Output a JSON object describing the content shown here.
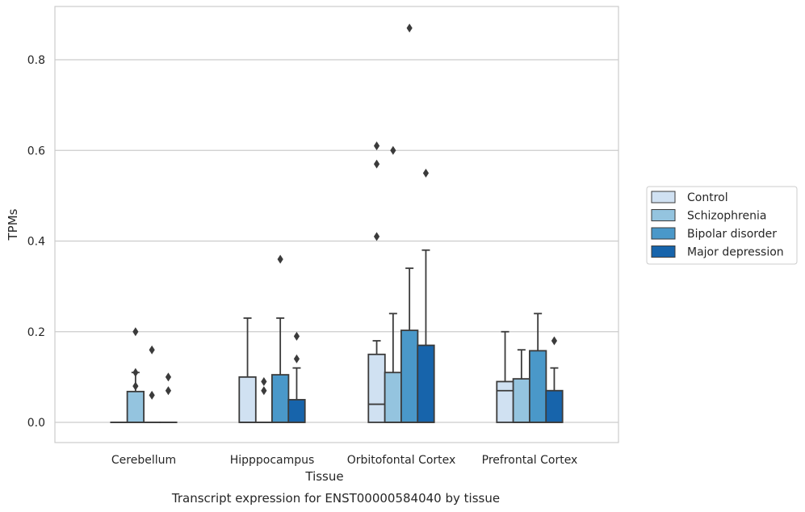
{
  "chart_data": {
    "type": "box",
    "title": "",
    "caption": "Transcript expression for ENST00000584040 by tissue",
    "xlabel": "Tissue",
    "ylabel": "TPMs",
    "ylim": [
      -0.04,
      0.92
    ],
    "yticks": [
      0.0,
      0.2,
      0.4,
      0.6,
      0.8
    ],
    "ytick_labels": [
      "0.0",
      "0.2",
      "0.4",
      "0.6",
      "0.8"
    ],
    "grid": "horizontal",
    "legend_position": "right",
    "categories": [
      "Cerebellum",
      "Hipppocampus",
      "Orbitofontal Cortex",
      "Prefrontal Cortex"
    ],
    "series": [
      {
        "name": "Control",
        "color": "#d0e1f2",
        "boxes": [
          {
            "q1": 0,
            "median": 0,
            "q3": 0,
            "whisker_low": 0,
            "whisker_high": 0,
            "outliers": []
          },
          {
            "q1": 0,
            "median": 0,
            "q3": 0.1,
            "whisker_low": 0,
            "whisker_high": 0.23,
            "outliers": []
          },
          {
            "q1": 0,
            "median": 0.04,
            "q3": 0.15,
            "whisker_low": 0,
            "whisker_high": 0.18,
            "outliers": [
              0.41,
              0.57,
              0.61
            ]
          },
          {
            "q1": 0,
            "median": 0.07,
            "q3": 0.09,
            "whisker_low": 0,
            "whisker_high": 0.2,
            "outliers": []
          }
        ]
      },
      {
        "name": "Schizophrenia",
        "color": "#94c4df",
        "boxes": [
          {
            "q1": 0,
            "median": 0,
            "q3": 0.068,
            "whisker_low": 0,
            "whisker_high": 0.11,
            "outliers": [
              0.08,
              0.11,
              0.2
            ]
          },
          {
            "q1": 0,
            "median": 0,
            "q3": 0,
            "whisker_low": 0,
            "whisker_high": 0,
            "outliers": [
              0.07,
              0.09
            ]
          },
          {
            "q1": 0,
            "median": 0,
            "q3": 0.11,
            "whisker_low": 0,
            "whisker_high": 0.24,
            "outliers": [
              0.6
            ]
          },
          {
            "q1": 0,
            "median": 0,
            "q3": 0.096,
            "whisker_low": 0,
            "whisker_high": 0.16,
            "outliers": []
          }
        ]
      },
      {
        "name": "Bipolar disorder",
        "color": "#4a98c9",
        "boxes": [
          {
            "q1": 0,
            "median": 0,
            "q3": 0,
            "whisker_low": 0,
            "whisker_high": 0,
            "outliers": [
              0.06,
              0.16
            ]
          },
          {
            "q1": 0,
            "median": 0,
            "q3": 0.105,
            "whisker_low": 0,
            "whisker_high": 0.23,
            "outliers": [
              0.36
            ]
          },
          {
            "q1": 0,
            "median": 0,
            "q3": 0.203,
            "whisker_low": 0,
            "whisker_high": 0.34,
            "outliers": [
              0.87
            ]
          },
          {
            "q1": 0,
            "median": 0,
            "q3": 0.158,
            "whisker_low": 0,
            "whisker_high": 0.24,
            "outliers": []
          }
        ]
      },
      {
        "name": "Major depression",
        "color": "#1764ab",
        "boxes": [
          {
            "q1": 0,
            "median": 0,
            "q3": 0,
            "whisker_low": 0,
            "whisker_high": 0,
            "outliers": [
              0.07,
              0.1
            ]
          },
          {
            "q1": 0,
            "median": 0,
            "q3": 0.05,
            "whisker_low": 0,
            "whisker_high": 0.12,
            "outliers": [
              0.14,
              0.19
            ]
          },
          {
            "q1": 0,
            "median": 0,
            "q3": 0.17,
            "whisker_low": 0,
            "whisker_high": 0.38,
            "outliers": [
              0.55
            ]
          },
          {
            "q1": 0,
            "median": 0,
            "q3": 0.07,
            "whisker_low": 0,
            "whisker_high": 0.12,
            "outliers": [
              0.18
            ]
          }
        ]
      }
    ]
  }
}
